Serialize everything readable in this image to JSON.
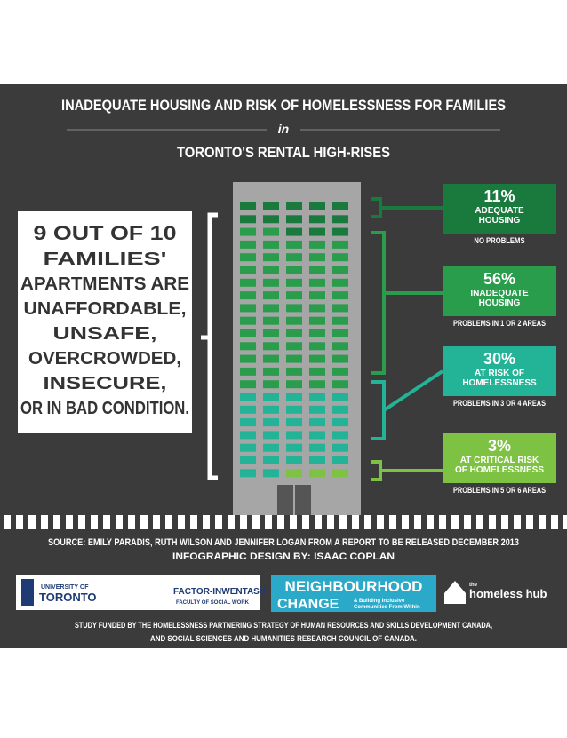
{
  "header": {
    "title": "INADEQUATE HOUSING AND RISK OF HOMELESSNESS FOR FAMILIES",
    "connector": "in",
    "subtitle": "TORONTO'S RENTAL HIGH-RISES"
  },
  "callout": [
    "9 OUT OF 10",
    "FAMILIES'",
    "APARTMENTS ARE",
    "UNAFFORDABLE,",
    "UNSAFE,",
    "OVERCROWDED,",
    "INSECURE,",
    "OR IN BAD CONDITION."
  ],
  "groups": [
    {
      "percent": "11%",
      "label": [
        "ADEQUATE",
        "HOUSING"
      ],
      "caption": "NO PROBLEMS"
    },
    {
      "percent": "56%",
      "label": [
        "INADEQUATE",
        "HOUSING"
      ],
      "caption": "PROBLEMS IN 1 OR 2 AREAS"
    },
    {
      "percent": "30%",
      "label": [
        "AT RISK OF",
        "HOMELESSNESS"
      ],
      "caption": "PROBLEMS IN 3 OR 4 AREAS"
    },
    {
      "percent": "3%",
      "label": [
        "AT CRITICAL RISK",
        "OF HOMELESSNESS"
      ],
      "caption": "PROBLEMS IN 5 OR 6 AREAS"
    }
  ],
  "footer": {
    "source": "SOURCE: EMILY PARADIS, RUTH WILSON AND JENNIFER LOGAN FROM A REPORT TO BE RELEASED DECEMBER 2013",
    "design": "INFOGRAPHIC DESIGN BY: ISAAC COPLAN",
    "logos": {
      "uoft_small": "UNIVERSITY OF",
      "uoft": "TORONTO",
      "factor": "FACTOR-INWENTASH",
      "factor_sub": "FACULTY OF SOCIAL WORK",
      "nc1": "NEIGHBOURHOOD",
      "nc2": "CHANGE",
      "nc_sub": [
        "& Building Inclusive",
        "Communities From Within"
      ],
      "hub_small": "the",
      "hub": "homeless hub"
    },
    "funding": [
      "STUDY FUNDED BY THE HOMELESSNESS PARTNERING STRATEGY OF HUMAN RESOURCES AND SKILLS DEVELOPMENT CANADA,",
      "AND SOCIAL SCIENCES AND HUMANITIES RESEARCH COUNCIL OF CANADA."
    ]
  }
}
